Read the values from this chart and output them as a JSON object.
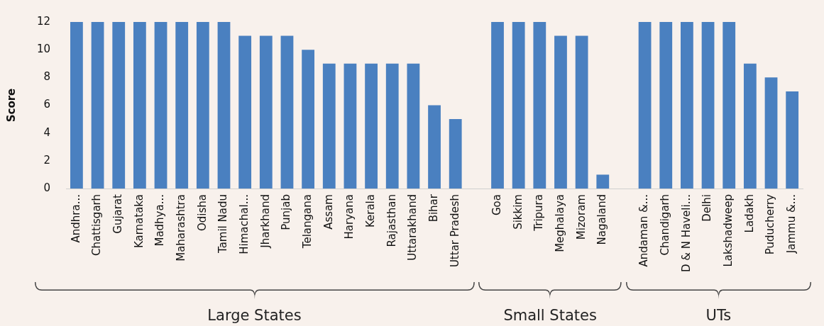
{
  "chart_data": {
    "type": "bar",
    "ylabel": "Score",
    "categories": [
      "Andhra...",
      "Chattisgarh",
      "Gujarat",
      "Karnataka",
      "Madhya...",
      "Maharashtra",
      "Odisha",
      "Tamil Nadu",
      "Himachal...",
      "Jharkhand",
      "Punjab",
      "Telangana",
      "Assam",
      "Haryana",
      "Kerala",
      "Rajasthan",
      "Uttarakhand",
      "Bihar",
      "Uttar Pradesh",
      null,
      "Goa",
      "Sikkim",
      "Tripura",
      "Meghalaya",
      "Mizoram",
      "Nagaland",
      null,
      "Andaman &...",
      "Chandigarh",
      "D & N Haveli...",
      "Delhi",
      "Lakshadweep",
      "Ladakh",
      "Puducherry",
      "Jammu &..."
    ],
    "values": [
      12,
      12,
      12,
      12,
      12,
      12,
      12,
      12,
      11,
      11,
      11,
      10,
      9,
      9,
      9,
      9,
      9,
      6,
      5,
      null,
      12,
      12,
      12,
      11,
      11,
      1,
      null,
      12,
      12,
      12,
      12,
      12,
      9,
      8,
      7
    ],
    "color": "#4a80c0",
    "ylim": [
      0,
      12
    ],
    "yticks": [
      0,
      2,
      4,
      6,
      8,
      10,
      12
    ],
    "annotations": [
      "Large States",
      "Small States",
      "UTs"
    ]
  }
}
